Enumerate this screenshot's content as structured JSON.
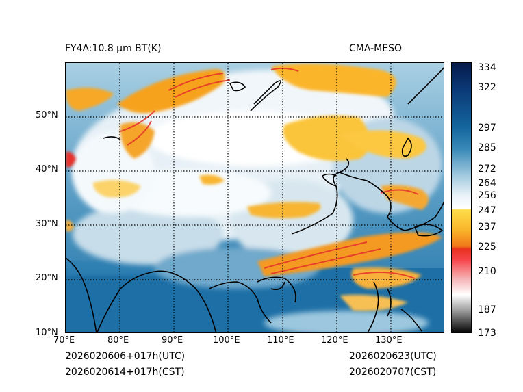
{
  "header": {
    "left_title": "FY4A:10.8 µm BT(K)",
    "right_title": "CMA-MESO"
  },
  "footer": {
    "left_line1": "2026020606+017h(UTC)",
    "left_line2": "2026020614+017h(CST)",
    "right_line1": "2026020623(UTC)",
    "right_line2": "2026020707(CST)"
  },
  "map": {
    "lon_range": [
      70,
      140
    ],
    "lat_range": [
      10,
      60
    ],
    "lon_labels": [
      "70°E",
      "80°E",
      "90°E",
      "100°E",
      "110°E",
      "120°E",
      "130°E"
    ],
    "lat_labels": [
      "10°N",
      "20°N",
      "30°N",
      "40°N",
      "50°N"
    ]
  },
  "colorbar": {
    "min": 173,
    "max": 336,
    "ticks": [
      "334",
      "322",
      "297",
      "285",
      "272",
      "264",
      "256",
      "247",
      "237",
      "225",
      "210",
      "187",
      "173"
    ]
  }
}
